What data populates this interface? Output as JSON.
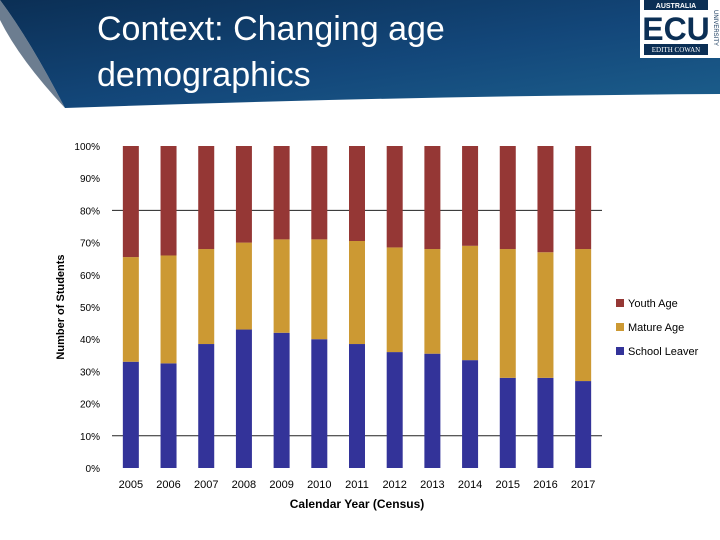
{
  "slide": {
    "title": "Context: Changing age demographics"
  },
  "logo": {
    "top_text": "AUSTRALIA",
    "letters": "ECU",
    "bottom_text": "EDITH COWAN",
    "side_text": "UNIVERSITY"
  },
  "colors": {
    "banner_dark": "#0b2f55",
    "banner_light": "#1c5f8c",
    "youth": "#953735",
    "mature": "#cc9933",
    "school": "#333399"
  },
  "chart_data": {
    "type": "bar",
    "stacked": true,
    "percent": true,
    "xlabel": "Calendar Year (Census)",
    "ylabel": "Number of Students",
    "ylim": [
      0,
      100
    ],
    "yticks": [
      "0%",
      "10%",
      "20%",
      "30%",
      "40%",
      "50%",
      "60%",
      "70%",
      "80%",
      "90%",
      "100%"
    ],
    "grid": "major lines at 10% and 80%",
    "legend": "right",
    "categories": [
      "2005",
      "2006",
      "2007",
      "2008",
      "2009",
      "2010",
      "2011",
      "2012",
      "2013",
      "2014",
      "2015",
      "2016",
      "2017"
    ],
    "series": [
      {
        "name": "School Leaver",
        "color": "#333399",
        "values": [
          33,
          32.5,
          38.5,
          43,
          42,
          40,
          38.5,
          36,
          35.5,
          33.5,
          28,
          28,
          27
        ]
      },
      {
        "name": "Mature Age",
        "color": "#cc9933",
        "values": [
          32.5,
          33.5,
          29.5,
          27,
          29,
          31,
          32,
          32.5,
          32.5,
          35.5,
          40,
          39,
          41
        ]
      },
      {
        "name": "Youth Age",
        "color": "#953735",
        "values": [
          34.5,
          34,
          32,
          30,
          29,
          29,
          29.5,
          31.5,
          32,
          31,
          32,
          33,
          32
        ]
      }
    ],
    "legend_order": [
      "Youth Age",
      "Mature Age",
      "School Leaver"
    ]
  }
}
